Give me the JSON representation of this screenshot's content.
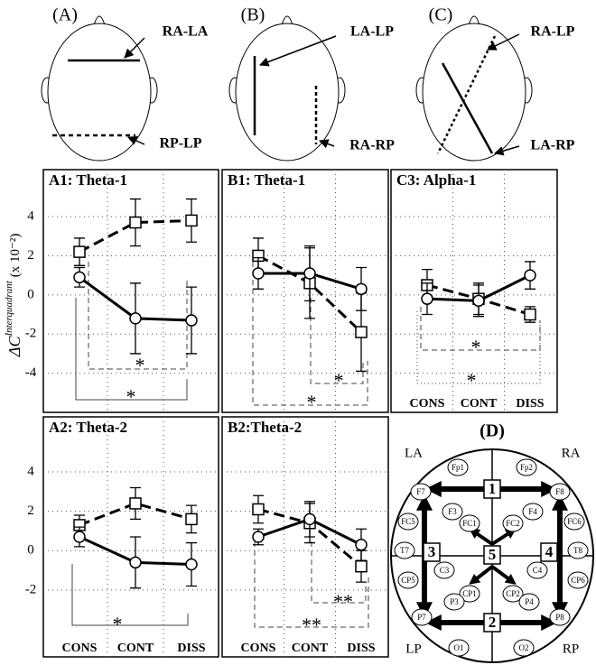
{
  "chart_data": [
    {
      "type": "line",
      "title": "A1:  Theta-1",
      "ylabel": "ΔC",
      "ylabel_sup": "Interquadrant",
      "ylabel_unit": "(x 10⁻²)",
      "ylim": [
        -6,
        6.4
      ],
      "yticks": [
        -4,
        -2,
        0,
        2,
        4
      ],
      "ytick_labels": true,
      "grid": true,
      "series": [
        {
          "color": "#000000",
          "dashed": true,
          "marker": "square",
          "values": [
            2.2,
            3.7,
            3.8
          ],
          "errors": [
            0.7,
            1.2,
            1.1
          ]
        },
        {
          "color": "#000000",
          "dashed": false,
          "marker": "circle",
          "values": [
            0.9,
            -1.2,
            -1.3
          ],
          "errors": [
            0.5,
            1.8,
            1.7
          ]
        }
      ],
      "annotations": [
        "*",
        "*"
      ]
    },
    {
      "type": "line",
      "title": "B1:  Theta-1",
      "ylim": [
        -6,
        6.4
      ],
      "yticks": [
        -4,
        -2,
        0,
        2,
        4
      ],
      "ytick_labels": false,
      "grid": true,
      "series": [
        {
          "color": "#000000",
          "dashed": true,
          "marker": "square",
          "values": [
            2.0,
            0.6,
            -1.9
          ],
          "errors": [
            0.9,
            1.8,
            2.0
          ]
        },
        {
          "color": "#000000",
          "dashed": false,
          "marker": "circle",
          "values": [
            1.1,
            1.1,
            0.3
          ],
          "errors": [
            0.8,
            1.4,
            1.1
          ]
        }
      ],
      "annotations": [
        "*",
        "*"
      ]
    },
    {
      "type": "line",
      "title": "C3:  Alpha-1",
      "categories": [
        "CONS",
        "CONT",
        "DISS"
      ],
      "ylim": [
        -6,
        6.4
      ],
      "yticks": [
        -4,
        -2,
        0,
        2,
        4
      ],
      "ytick_labels": false,
      "grid": true,
      "series": [
        {
          "color": "#000000",
          "dashed": true,
          "marker": "square",
          "values": [
            0.5,
            -0.2,
            -1.0
          ],
          "errors": [
            0.8,
            0.8,
            0.4
          ]
        },
        {
          "color": "#000000",
          "dashed": false,
          "marker": "circle",
          "values": [
            -0.2,
            -0.3,
            1.0
          ],
          "errors": [
            0.8,
            0.8,
            0.7
          ]
        }
      ],
      "annotations": [
        "*",
        "*"
      ]
    },
    {
      "type": "line",
      "title": "A2: Theta-2",
      "categories": [
        "CONS",
        "CONT",
        "DISS"
      ],
      "ylim": [
        -5.4,
        6.8
      ],
      "yticks": [
        -2,
        0,
        2,
        4
      ],
      "ytick_labels": true,
      "grid": true,
      "series": [
        {
          "color": "#000000",
          "dashed": true,
          "marker": "square",
          "values": [
            1.3,
            2.4,
            1.6
          ],
          "errors": [
            0.5,
            0.8,
            0.7
          ]
        },
        {
          "color": "#000000",
          "dashed": false,
          "marker": "circle",
          "values": [
            0.7,
            -0.6,
            -0.7
          ],
          "errors": [
            0.5,
            1.3,
            1.1
          ]
        }
      ],
      "annotations": [
        "*"
      ]
    },
    {
      "type": "line",
      "title": "B2:Theta-2",
      "categories": [
        "CONS",
        "CONT",
        "DISS"
      ],
      "ylim": [
        -5.4,
        6.8
      ],
      "yticks": [
        -2,
        0,
        2,
        4
      ],
      "ytick_labels": false,
      "grid": true,
      "series": [
        {
          "color": "#000000",
          "dashed": true,
          "marker": "square",
          "values": [
            2.1,
            1.4,
            -0.8
          ],
          "errors": [
            0.7,
            1.0,
            0.8
          ]
        },
        {
          "color": "#000000",
          "dashed": false,
          "marker": "circle",
          "values": [
            0.7,
            1.6,
            0.3
          ],
          "errors": [
            0.4,
            0.9,
            0.8
          ]
        }
      ],
      "annotations": [
        "**",
        "**"
      ]
    }
  ],
  "heads": [
    {
      "label": "(A)",
      "lines": [
        "RA-LA",
        "RP-LP"
      ]
    },
    {
      "label": "(B)",
      "lines": [
        "LA-LP",
        "RA-RP"
      ]
    },
    {
      "label": "(C)",
      "lines": [
        "RA-LP",
        "LA-RP"
      ]
    }
  ],
  "map": {
    "label": "(D)",
    "quadrants": [
      "LA",
      "RA",
      "LP",
      "RP"
    ],
    "electrodes": [
      "Fp1",
      "Fp2",
      "F7",
      "F3",
      "FC1",
      "FC2",
      "F4",
      "F8",
      "FC5",
      "FC6",
      "T7",
      "C3",
      "C4",
      "T8",
      "CP5",
      "CP1",
      "CP2",
      "CP6",
      "P7",
      "P3",
      "P4",
      "P8",
      "O1",
      "O2"
    ],
    "numbers": [
      "1",
      "2",
      "3",
      "4",
      "5"
    ]
  }
}
